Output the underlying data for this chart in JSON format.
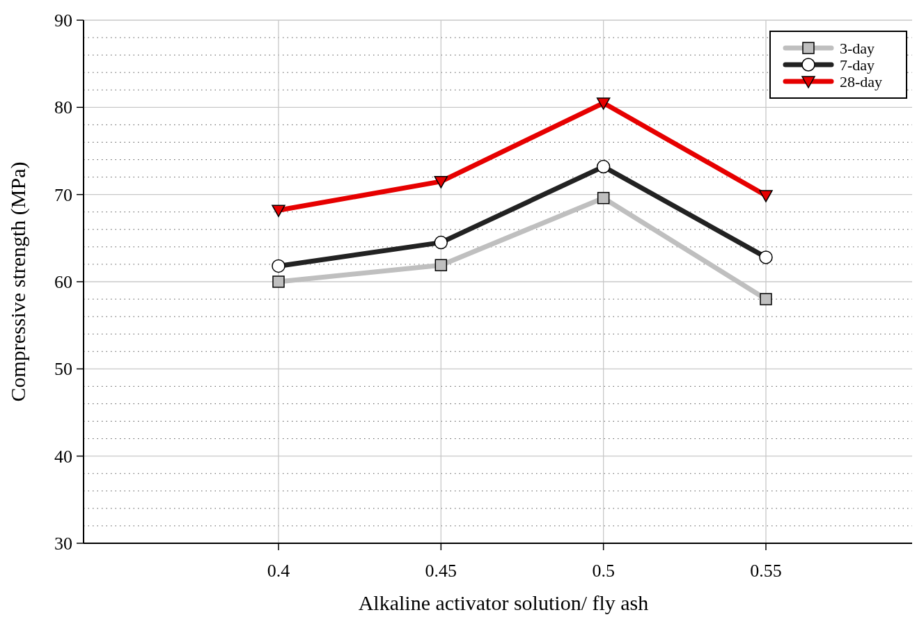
{
  "chart_data": {
    "type": "line",
    "xlabel": "Alkaline activator solution/ fly ash",
    "ylabel": "Compressive strength (MPa)",
    "x": [
      0.4,
      0.45,
      0.5,
      0.55
    ],
    "xlim": [
      0.34,
      0.595
    ],
    "xticks": [
      0.4,
      0.45,
      0.5,
      0.55
    ],
    "ylim": [
      30,
      90
    ],
    "yticks": [
      30,
      {
        "value": 32,
        "label": null
      },
      {
        "value": 34,
        "label": null
      },
      {
        "value": 36,
        "label": null
      },
      {
        "value": 38,
        "label": null
      },
      40,
      {
        "value": 42,
        "label": null
      },
      {
        "value": 44,
        "label": null
      },
      {
        "value": 46,
        "label": null
      },
      {
        "value": 48,
        "label": null
      },
      50,
      {
        "value": 52,
        "label": null
      },
      {
        "value": 54,
        "label": null
      },
      {
        "value": 56,
        "label": null
      },
      {
        "value": 58,
        "label": null
      },
      60,
      {
        "value": 62,
        "label": null
      },
      {
        "value": 64,
        "label": null
      },
      {
        "value": 66,
        "label": null
      },
      {
        "value": 68,
        "label": null
      },
      70,
      {
        "value": 72,
        "label": null
      },
      {
        "value": 74,
        "label": null
      },
      {
        "value": 76,
        "label": null
      },
      {
        "value": 78,
        "label": null
      },
      80,
      {
        "value": 82,
        "label": null
      },
      {
        "value": 84,
        "label": null
      },
      {
        "value": 86,
        "label": null
      },
      {
        "value": 88,
        "label": null
      },
      90
    ],
    "grid": true,
    "legend": "top right",
    "line_style": "solid",
    "series": [
      {
        "name": "3-day",
        "color": "#bfbfbf",
        "marker": "square",
        "values": [
          60,
          61.9,
          69.6,
          58
        ]
      },
      {
        "name": "7-day",
        "color": "#222222",
        "marker": "circle",
        "values": [
          61.8,
          64.5,
          73.2,
          62.8
        ]
      },
      {
        "name": "28-day",
        "color": "#e60000",
        "marker": "triangle",
        "values": [
          68.2,
          71.5,
          80.5,
          69.9
        ]
      }
    ]
  }
}
